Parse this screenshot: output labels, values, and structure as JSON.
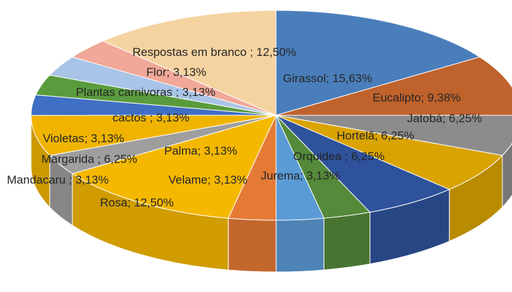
{
  "chart_data": {
    "type": "pie3d",
    "categories": [
      "Girassol",
      "Eucalipto",
      "Jatobá",
      "Hortelã",
      "Orquidea",
      "Jurema",
      "Velame",
      "Palma",
      "Rosa",
      "Mandacaru",
      "Margarida",
      "Violetas",
      "cactos",
      "Plantas carnivoras",
      "Flor",
      "Respostas em branco"
    ],
    "values": [
      15.63,
      9.38,
      6.25,
      6.25,
      6.25,
      3.13,
      3.13,
      3.13,
      12.5,
      3.13,
      6.25,
      3.13,
      3.13,
      3.13,
      3.13,
      12.5
    ],
    "value_labels": [
      "; 15,63%",
      "; 9,38%",
      "; 6,25%",
      "; 6,25%",
      " ; 6,25%",
      "; 3,13%",
      "; 3,13%",
      "; 3,13%",
      "; 12,50%",
      " ; 3,13%",
      " ; 6,25%",
      "; 3,13%",
      " ; 3,13%",
      " ; 3,13%",
      "; 3,13%",
      " ; 12,50%"
    ],
    "colors": [
      "#4a7ebb",
      "#c0622c",
      "#8c8c8c",
      "#d9a300",
      "#2e529b",
      "#548a3a",
      "#5b9bd5",
      "#e57a35",
      "#f5b800",
      "#9e9e9e",
      "#f0b400",
      "#3f6fc4",
      "#5a9b3e",
      "#a8c4e6",
      "#f0a898",
      "#f5d3a1"
    ]
  }
}
